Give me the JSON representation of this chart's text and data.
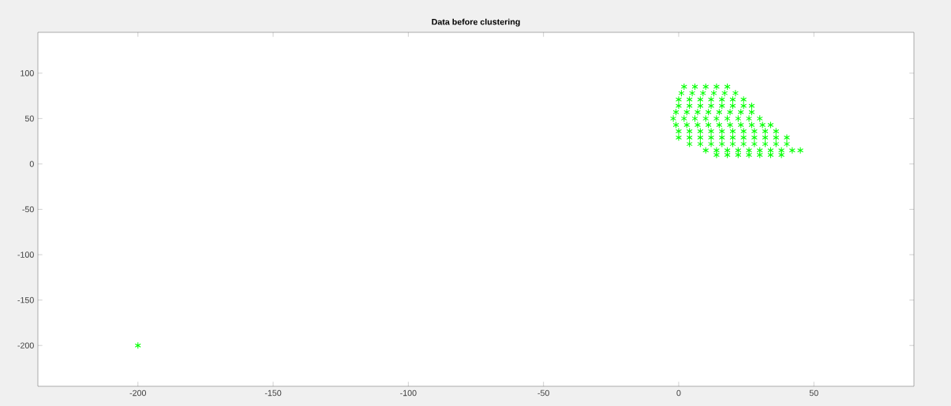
{
  "chart_data": {
    "type": "scatter",
    "title": "Data before clustering",
    "x": [
      -200,
      2,
      6,
      10,
      14,
      18,
      1,
      5,
      9,
      13,
      17,
      21,
      0,
      4,
      8,
      12,
      16,
      20,
      24,
      0,
      4,
      8,
      12,
      16,
      20,
      24,
      27,
      -1,
      3,
      7,
      11,
      15,
      19,
      23,
      27,
      -2,
      2,
      6,
      10,
      14,
      18,
      22,
      26,
      30,
      -1,
      3,
      7,
      11,
      15,
      19,
      23,
      27,
      31,
      34,
      0,
      4,
      8,
      12,
      16,
      20,
      24,
      28,
      32,
      36,
      0,
      4,
      8,
      12,
      16,
      20,
      24,
      28,
      32,
      36,
      40,
      4,
      8,
      12,
      16,
      20,
      24,
      28,
      32,
      36,
      40,
      10,
      14,
      18,
      22,
      26,
      30,
      34,
      38,
      42,
      45,
      14,
      18,
      22,
      26,
      30,
      34,
      38
    ],
    "values": [
      -200,
      85,
      85,
      85,
      85,
      85,
      78,
      78,
      78,
      78,
      78,
      78,
      71,
      71,
      71,
      71,
      71,
      71,
      71,
      64,
      64,
      64,
      64,
      64,
      64,
      64,
      64,
      57,
      57,
      57,
      57,
      57,
      57,
      57,
      57,
      50,
      50,
      50,
      50,
      50,
      50,
      50,
      50,
      50,
      43,
      43,
      43,
      43,
      43,
      43,
      43,
      43,
      43,
      43,
      36,
      36,
      36,
      36,
      36,
      36,
      36,
      36,
      36,
      36,
      29,
      29,
      29,
      29,
      29,
      29,
      29,
      29,
      29,
      29,
      29,
      22,
      22,
      22,
      22,
      22,
      22,
      22,
      22,
      22,
      22,
      15,
      15,
      15,
      15,
      15,
      15,
      15,
      15,
      15,
      15,
      10,
      10,
      10,
      10,
      10,
      10,
      10
    ],
    "color": "#00ff00",
    "marker": "cross",
    "grid": false,
    "xlim": [
      -237,
      87
    ],
    "xticks": [
      -200,
      -150,
      -100,
      -50,
      0,
      50
    ],
    "ylim": [
      -245,
      145
    ],
    "yticks": [
      -200,
      -150,
      -100,
      -50,
      0,
      50,
      100
    ]
  }
}
